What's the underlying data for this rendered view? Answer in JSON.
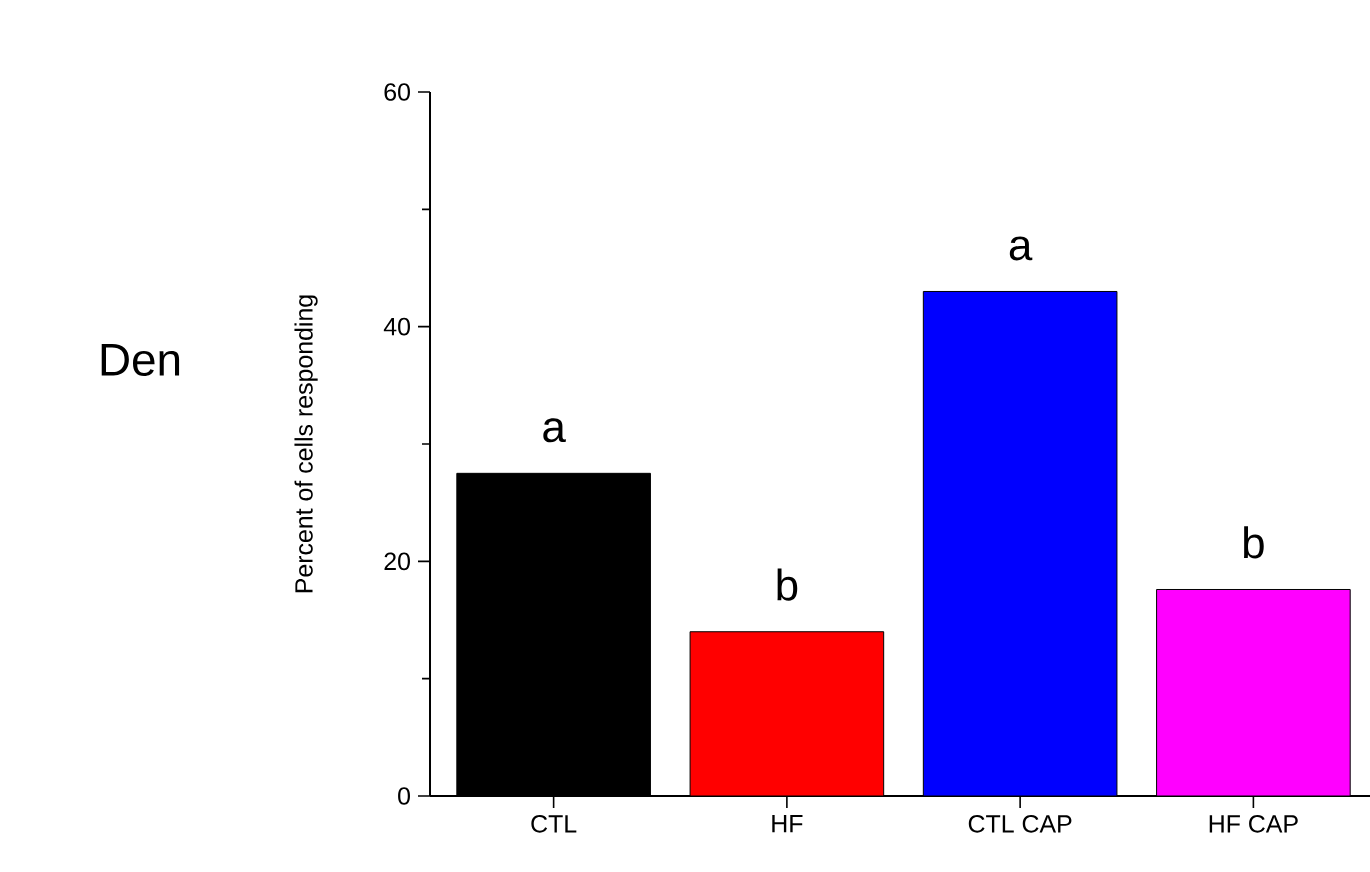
{
  "chart_data": {
    "type": "bar",
    "ylabel": "Percent of cells responding",
    "categories": [
      "CTL",
      "HF",
      "CTL CAP",
      "HF CAP"
    ],
    "values": [
      27.5,
      14.0,
      43.0,
      17.6
    ],
    "colors": [
      "#000000",
      "#ff0000",
      "#0000ff",
      "#ff00ff"
    ],
    "ylim": [
      0,
      60
    ],
    "yticks": [
      0,
      20,
      40,
      60
    ],
    "grid": false,
    "annotations": [
      "Den",
      "a",
      "b",
      "a",
      "b"
    ]
  }
}
